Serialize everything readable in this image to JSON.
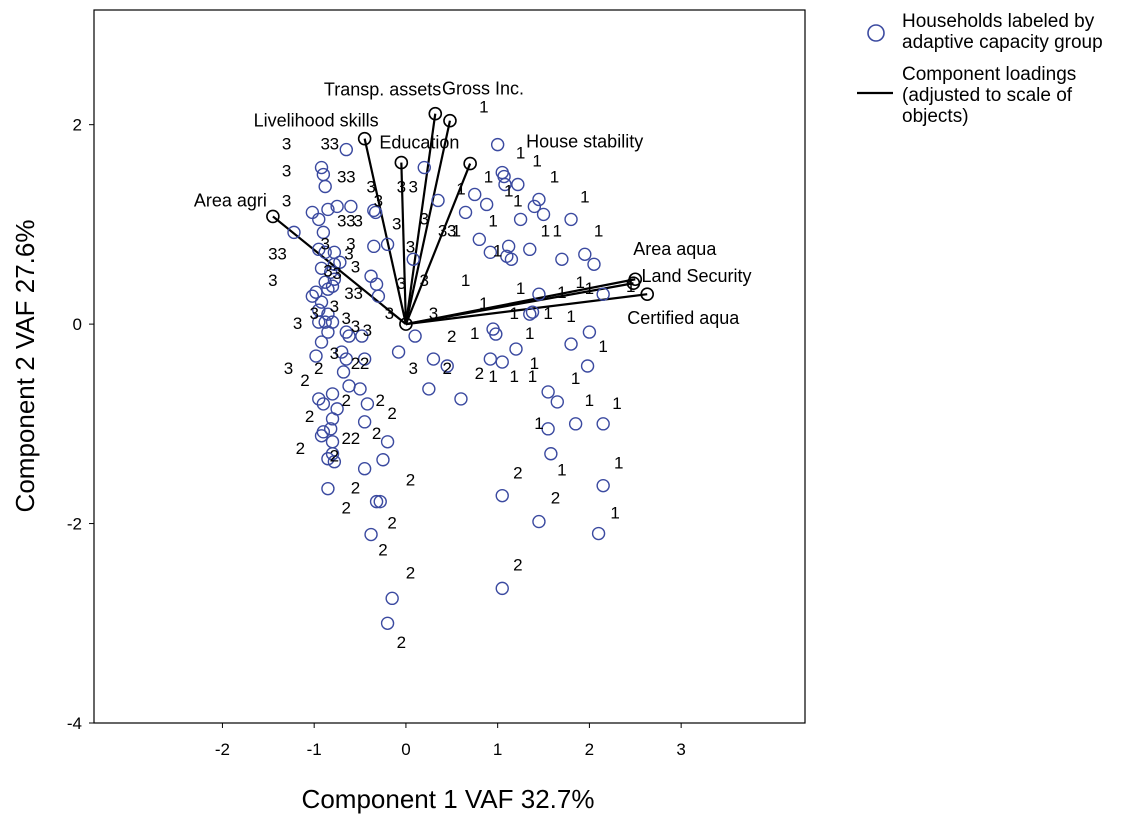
{
  "chart_data": {
    "type": "scatter",
    "xlabel": "Component 1 VAF 32.7%",
    "ylabel": "Component  2 VAF 27.6%",
    "xlim": [
      -3.4,
      4.35
    ],
    "ylim": [
      -4,
      3.15
    ],
    "x_ticks": [
      -2,
      -1,
      0,
      1,
      2,
      3
    ],
    "y_ticks": [
      -4,
      -2,
      0,
      2
    ],
    "grid": false,
    "legend": {
      "placement": "outside-right",
      "items": [
        {
          "marker": "circle",
          "lines": [
            "Households labeled by",
            "adaptive capacity group"
          ]
        },
        {
          "marker": "line",
          "lines": [
            "Component loadings",
            "(adjusted to scale of",
            "objects)"
          ]
        }
      ]
    },
    "colors": {
      "points": "#3b4aa0",
      "loadings": "#000000"
    },
    "loadings": [
      {
        "label": "Area agri",
        "x": -1.45,
        "y": 1.08
      },
      {
        "label": "Livelihood skills",
        "x": -0.45,
        "y": 1.86
      },
      {
        "label": "Education",
        "x": -0.05,
        "y": 1.62
      },
      {
        "label": "Transp. assets",
        "x": 0.32,
        "y": 2.11
      },
      {
        "label": "Gross Inc.",
        "x": 0.48,
        "y": 2.04
      },
      {
        "label": "House stability",
        "x": 0.7,
        "y": 1.61
      },
      {
        "label": "Area aqua",
        "x": 2.5,
        "y": 0.45
      },
      {
        "label": "Land Security",
        "x": 2.48,
        "y": 0.41
      },
      {
        "label": "Certified aqua",
        "x": 2.63,
        "y": 0.3
      }
    ],
    "objects": [
      {
        "x": -0.65,
        "y": 1.75
      },
      {
        "x": -0.92,
        "y": 1.57
      },
      {
        "x": -0.9,
        "y": 1.5
      },
      {
        "x": -0.88,
        "y": 1.38
      },
      {
        "x": -0.6,
        "y": 1.18
      },
      {
        "x": -0.75,
        "y": 1.18
      },
      {
        "x": -0.85,
        "y": 1.15
      },
      {
        "x": -1.02,
        "y": 1.12
      },
      {
        "x": -0.95,
        "y": 1.05
      },
      {
        "x": -1.22,
        "y": 0.92
      },
      {
        "x": -0.9,
        "y": 0.92
      },
      {
        "x": -0.35,
        "y": 1.14
      },
      {
        "x": -0.33,
        "y": 1.12
      },
      {
        "x": -0.35,
        "y": 0.78
      },
      {
        "x": -0.2,
        "y": 0.8
      },
      {
        "x": -0.95,
        "y": 0.75
      },
      {
        "x": -0.88,
        "y": 0.72
      },
      {
        "x": -0.78,
        "y": 0.72
      },
      {
        "x": -0.72,
        "y": 0.62
      },
      {
        "x": -0.78,
        "y": 0.6
      },
      {
        "x": -0.92,
        "y": 0.56
      },
      {
        "x": -0.82,
        "y": 0.52
      },
      {
        "x": -0.78,
        "y": 0.45
      },
      {
        "x": -0.88,
        "y": 0.42
      },
      {
        "x": -0.8,
        "y": 0.38
      },
      {
        "x": -0.85,
        "y": 0.35
      },
      {
        "x": -0.98,
        "y": 0.32
      },
      {
        "x": -1.02,
        "y": 0.28
      },
      {
        "x": -0.92,
        "y": 0.22
      },
      {
        "x": -0.38,
        "y": 0.48
      },
      {
        "x": -0.32,
        "y": 0.4
      },
      {
        "x": -0.3,
        "y": 0.28
      },
      {
        "x": -0.95,
        "y": 0.14
      },
      {
        "x": -0.85,
        "y": 0.1
      },
      {
        "x": -0.95,
        "y": 0.02
      },
      {
        "x": -0.88,
        "y": 0.02
      },
      {
        "x": -0.8,
        "y": 0.02
      },
      {
        "x": -0.85,
        "y": -0.08
      },
      {
        "x": -0.92,
        "y": -0.18
      },
      {
        "x": -0.65,
        "y": -0.08
      },
      {
        "x": -0.62,
        "y": -0.12
      },
      {
        "x": -0.48,
        "y": -0.12
      },
      {
        "x": -0.98,
        "y": -0.32
      },
      {
        "x": -0.7,
        "y": -0.28
      },
      {
        "x": -0.65,
        "y": -0.35
      },
      {
        "x": -0.45,
        "y": -0.35
      },
      {
        "x": -0.68,
        "y": -0.48
      },
      {
        "x": -0.62,
        "y": -0.62
      },
      {
        "x": -0.5,
        "y": -0.65
      },
      {
        "x": -0.8,
        "y": -0.7
      },
      {
        "x": -0.95,
        "y": -0.75
      },
      {
        "x": -0.9,
        "y": -0.8
      },
      {
        "x": -0.75,
        "y": -0.85
      },
      {
        "x": -0.42,
        "y": -0.8
      },
      {
        "x": -0.8,
        "y": -0.95
      },
      {
        "x": -0.82,
        "y": -1.05
      },
      {
        "x": -0.9,
        "y": -1.08
      },
      {
        "x": -0.92,
        "y": -1.12
      },
      {
        "x": -0.45,
        "y": -0.98
      },
      {
        "x": -0.8,
        "y": -1.18
      },
      {
        "x": -0.2,
        "y": -1.18
      },
      {
        "x": -0.8,
        "y": -1.3
      },
      {
        "x": -0.85,
        "y": -1.35
      },
      {
        "x": -0.78,
        "y": -1.38
      },
      {
        "x": -0.25,
        "y": -1.36
      },
      {
        "x": -0.45,
        "y": -1.45
      },
      {
        "x": -0.85,
        "y": -1.65
      },
      {
        "x": -0.32,
        "y": -1.78
      },
      {
        "x": -0.28,
        "y": -1.78
      },
      {
        "x": -0.38,
        "y": -2.11
      },
      {
        "x": -0.15,
        "y": -2.75
      },
      {
        "x": -0.2,
        "y": -3.0
      },
      {
        "x": 0.1,
        "y": -0.12
      },
      {
        "x": -0.08,
        "y": -0.28
      },
      {
        "x": 0.3,
        "y": -0.35
      },
      {
        "x": 0.25,
        "y": -0.65
      },
      {
        "x": 0.6,
        "y": -0.75
      },
      {
        "x": 0.45,
        "y": -0.42
      },
      {
        "x": 0.08,
        "y": 0.65
      },
      {
        "x": 0.2,
        "y": 1.57
      },
      {
        "x": 0.35,
        "y": 1.24
      },
      {
        "x": 0.65,
        "y": 1.12
      },
      {
        "x": 0.75,
        "y": 1.3
      },
      {
        "x": 0.88,
        "y": 1.2
      },
      {
        "x": 0.8,
        "y": 0.85
      },
      {
        "x": 0.92,
        "y": 0.72
      },
      {
        "x": 1.0,
        "y": 1.8
      },
      {
        "x": 1.05,
        "y": 1.52
      },
      {
        "x": 1.07,
        "y": 1.48
      },
      {
        "x": 1.08,
        "y": 1.4
      },
      {
        "x": 1.22,
        "y": 1.4
      },
      {
        "x": 1.4,
        "y": 1.18
      },
      {
        "x": 1.45,
        "y": 1.25
      },
      {
        "x": 1.5,
        "y": 1.1
      },
      {
        "x": 1.25,
        "y": 1.05
      },
      {
        "x": 1.12,
        "y": 0.78
      },
      {
        "x": 1.1,
        "y": 0.68
      },
      {
        "x": 1.15,
        "y": 0.65
      },
      {
        "x": 1.35,
        "y": 0.75
      },
      {
        "x": 1.7,
        "y": 0.65
      },
      {
        "x": 1.8,
        "y": 1.05
      },
      {
        "x": 1.95,
        "y": 0.7
      },
      {
        "x": 2.05,
        "y": 0.6
      },
      {
        "x": 2.15,
        "y": 0.3
      },
      {
        "x": 1.45,
        "y": 0.3
      },
      {
        "x": 1.35,
        "y": 0.1
      },
      {
        "x": 1.38,
        "y": 0.12
      },
      {
        "x": 0.95,
        "y": -0.05
      },
      {
        "x": 0.98,
        "y": -0.1
      },
      {
        "x": 0.92,
        "y": -0.35
      },
      {
        "x": 1.05,
        "y": -0.38
      },
      {
        "x": 1.2,
        "y": -0.25
      },
      {
        "x": 1.8,
        "y": -0.2
      },
      {
        "x": 2.0,
        "y": -0.08
      },
      {
        "x": 1.98,
        "y": -0.42
      },
      {
        "x": 1.55,
        "y": -0.68
      },
      {
        "x": 1.65,
        "y": -0.78
      },
      {
        "x": 1.55,
        "y": -1.05
      },
      {
        "x": 1.58,
        "y": -1.3
      },
      {
        "x": 1.85,
        "y": -1.0
      },
      {
        "x": 2.15,
        "y": -1.0
      },
      {
        "x": 2.15,
        "y": -1.62
      },
      {
        "x": 1.45,
        "y": -1.98
      },
      {
        "x": 2.1,
        "y": -2.1
      },
      {
        "x": 1.05,
        "y": -1.72
      },
      {
        "x": 1.05,
        "y": -2.65
      }
    ],
    "object_labels": [
      {
        "text": "1",
        "x": 0.85,
        "y": 2.12
      },
      {
        "text": "1",
        "x": 1.25,
        "y": 1.66
      },
      {
        "text": "1",
        "x": 1.43,
        "y": 1.58
      },
      {
        "text": "1",
        "x": 1.62,
        "y": 1.42
      },
      {
        "text": "1",
        "x": 0.9,
        "y": 1.42
      },
      {
        "text": "1",
        "x": 1.12,
        "y": 1.28
      },
      {
        "text": "1",
        "x": 0.6,
        "y": 1.3
      },
      {
        "text": "1",
        "x": 1.22,
        "y": 1.18
      },
      {
        "text": "1",
        "x": 1.95,
        "y": 1.22
      },
      {
        "text": "1",
        "x": 0.55,
        "y": 0.88
      },
      {
        "text": "1",
        "x": 0.95,
        "y": 0.98
      },
      {
        "text": "1",
        "x": 1.52,
        "y": 0.88
      },
      {
        "text": "1",
        "x": 1.65,
        "y": 0.88
      },
      {
        "text": "1",
        "x": 2.1,
        "y": 0.88
      },
      {
        "text": "1",
        "x": 1.0,
        "y": 0.68
      },
      {
        "text": "1",
        "x": 0.65,
        "y": 0.38
      },
      {
        "text": "1",
        "x": 1.25,
        "y": 0.3
      },
      {
        "text": "1",
        "x": 1.9,
        "y": 0.36
      },
      {
        "text": "1",
        "x": 2.0,
        "y": 0.3
      },
      {
        "text": "1",
        "x": 1.7,
        "y": 0.26
      },
      {
        "text": "1",
        "x": 2.45,
        "y": 0.32
      },
      {
        "text": "1",
        "x": 0.85,
        "y": 0.15
      },
      {
        "text": "1",
        "x": 1.18,
        "y": 0.05
      },
      {
        "text": "1",
        "x": 1.55,
        "y": 0.05
      },
      {
        "text": "1",
        "x": 1.8,
        "y": 0.02
      },
      {
        "text": "1",
        "x": 0.75,
        "y": -0.15
      },
      {
        "text": "1",
        "x": 1.35,
        "y": -0.15
      },
      {
        "text": "1",
        "x": 2.15,
        "y": -0.28
      },
      {
        "text": "1",
        "x": 0.95,
        "y": -0.58
      },
      {
        "text": "1",
        "x": 1.18,
        "y": -0.58
      },
      {
        "text": "1",
        "x": 1.4,
        "y": -0.45
      },
      {
        "text": "1",
        "x": 1.38,
        "y": -0.58
      },
      {
        "text": "1",
        "x": 1.85,
        "y": -0.6
      },
      {
        "text": "1",
        "x": 2.0,
        "y": -0.82
      },
      {
        "text": "1",
        "x": 2.3,
        "y": -0.85
      },
      {
        "text": "1",
        "x": 1.45,
        "y": -1.05
      },
      {
        "text": "1",
        "x": 1.7,
        "y": -1.52
      },
      {
        "text": "1",
        "x": 2.32,
        "y": -1.45
      },
      {
        "text": "1",
        "x": 2.28,
        "y": -1.95
      },
      {
        "text": "2",
        "x": 1.22,
        "y": -1.55
      },
      {
        "text": "2",
        "x": 1.63,
        "y": -1.8
      },
      {
        "text": "2",
        "x": 1.22,
        "y": -2.47
      },
      {
        "text": "2",
        "x": 0.5,
        "y": -0.18
      },
      {
        "text": "2",
        "x": 0.45,
        "y": -0.5
      },
      {
        "text": "2",
        "x": 0.8,
        "y": -0.55
      },
      {
        "text": "2",
        "x": 0.05,
        "y": -1.62
      },
      {
        "text": "2",
        "x": -0.15,
        "y": -2.05
      },
      {
        "text": "2",
        "x": -0.25,
        "y": -2.32
      },
      {
        "text": "2",
        "x": 0.05,
        "y": -2.55
      },
      {
        "text": "2",
        "x": -0.05,
        "y": -3.25
      },
      {
        "text": "2",
        "x": -0.95,
        "y": -0.5
      },
      {
        "text": "2",
        "x": -1.1,
        "y": -0.62
      },
      {
        "text": "2",
        "x": -0.45,
        "y": -0.45
      },
      {
        "text": "2",
        "x": -0.55,
        "y": -0.45
      },
      {
        "text": "2",
        "x": -0.65,
        "y": -0.82
      },
      {
        "text": "2",
        "x": -0.28,
        "y": -0.82
      },
      {
        "text": "2",
        "x": -0.15,
        "y": -0.95
      },
      {
        "text": "2",
        "x": -1.05,
        "y": -0.98
      },
      {
        "text": "2",
        "x": -0.65,
        "y": -1.2
      },
      {
        "text": "2",
        "x": -0.55,
        "y": -1.2
      },
      {
        "text": "2",
        "x": -0.32,
        "y": -1.15
      },
      {
        "text": "2",
        "x": -1.15,
        "y": -1.3
      },
      {
        "text": "2",
        "x": -0.55,
        "y": -1.7
      },
      {
        "text": "2",
        "x": -0.65,
        "y": -1.9
      },
      {
        "text": "2",
        "x": -0.78,
        "y": -1.38
      },
      {
        "text": "3",
        "x": -1.3,
        "y": 1.75
      },
      {
        "text": "3",
        "x": -0.88,
        "y": 1.75
      },
      {
        "text": "3",
        "x": -0.78,
        "y": 1.75
      },
      {
        "text": "3",
        "x": -1.3,
        "y": 1.48
      },
      {
        "text": "3",
        "x": -0.7,
        "y": 1.42
      },
      {
        "text": "3",
        "x": -0.6,
        "y": 1.42
      },
      {
        "text": "3",
        "x": -0.38,
        "y": 1.32
      },
      {
        "text": "3",
        "x": -0.05,
        "y": 1.32
      },
      {
        "text": "3",
        "x": 0.08,
        "y": 1.32
      },
      {
        "text": "3",
        "x": -1.3,
        "y": 1.18
      },
      {
        "text": "3",
        "x": -0.7,
        "y": 0.98
      },
      {
        "text": "3",
        "x": -0.6,
        "y": 0.98
      },
      {
        "text": "3",
        "x": -0.52,
        "y": 0.98
      },
      {
        "text": "3",
        "x": -0.3,
        "y": 1.18
      },
      {
        "text": "3",
        "x": -0.1,
        "y": 0.95
      },
      {
        "text": "3",
        "x": 0.2,
        "y": 1.0
      },
      {
        "text": "3",
        "x": 0.4,
        "y": 0.88
      },
      {
        "text": "3",
        "x": 0.5,
        "y": 0.88
      },
      {
        "text": "3",
        "x": -1.45,
        "y": 0.65
      },
      {
        "text": "3",
        "x": -1.35,
        "y": 0.65
      },
      {
        "text": "3",
        "x": -0.88,
        "y": 0.75
      },
      {
        "text": "3",
        "x": -0.62,
        "y": 0.65
      },
      {
        "text": "3",
        "x": -0.6,
        "y": 0.75
      },
      {
        "text": "3",
        "x": 0.05,
        "y": 0.72
      },
      {
        "text": "3",
        "x": -1.45,
        "y": 0.38
      },
      {
        "text": "3",
        "x": -0.55,
        "y": 0.52
      },
      {
        "text": "3",
        "x": -0.62,
        "y": 0.25
      },
      {
        "text": "3",
        "x": -0.52,
        "y": 0.25
      },
      {
        "text": "3",
        "x": -0.85,
        "y": 0.48
      },
      {
        "text": "3",
        "x": -0.75,
        "y": 0.45
      },
      {
        "text": "3",
        "x": -0.05,
        "y": 0.35
      },
      {
        "text": "3",
        "x": 0.2,
        "y": 0.38
      },
      {
        "text": "3",
        "x": -0.78,
        "y": 0.12
      },
      {
        "text": "3",
        "x": -1.18,
        "y": -0.05
      },
      {
        "text": "3",
        "x": -1.0,
        "y": 0.05
      },
      {
        "text": "3",
        "x": -0.65,
        "y": 0.0
      },
      {
        "text": "3",
        "x": -0.55,
        "y": -0.08
      },
      {
        "text": "3",
        "x": -0.42,
        "y": -0.12
      },
      {
        "text": "3",
        "x": -0.18,
        "y": 0.05
      },
      {
        "text": "3",
        "x": 0.3,
        "y": 0.05
      },
      {
        "text": "3",
        "x": -1.28,
        "y": -0.5
      },
      {
        "text": "3",
        "x": -0.78,
        "y": -0.35
      },
      {
        "text": "3",
        "x": 0.08,
        "y": -0.5
      }
    ]
  }
}
